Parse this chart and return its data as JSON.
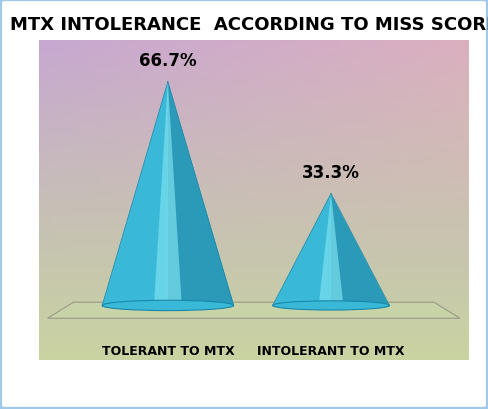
{
  "title": "MTX INTOLERANCE  ACCORDING TO MISS SCORE",
  "categories": [
    "TOLERANT TO MTX",
    "INTOLERANT TO MTX"
  ],
  "values": [
    66.7,
    33.3
  ],
  "labels": [
    "66.7%",
    "33.3%"
  ],
  "cone_color_top": "#5cc8e0",
  "cone_color_mid": "#40b8d8",
  "cone_color_dark": "#2a9ab8",
  "cone_color_highlight": "#a0e8f8",
  "bg_color_top_left": "#c8a8d0",
  "bg_color_top_right": "#d8b0c0",
  "bg_color_bottom": "#c8d8a0",
  "floor_color": "#c8d4a0",
  "border_color": "#a0c8e8",
  "title_fontsize": 13,
  "label_fontsize": 12,
  "xlabel_fontsize": 10
}
